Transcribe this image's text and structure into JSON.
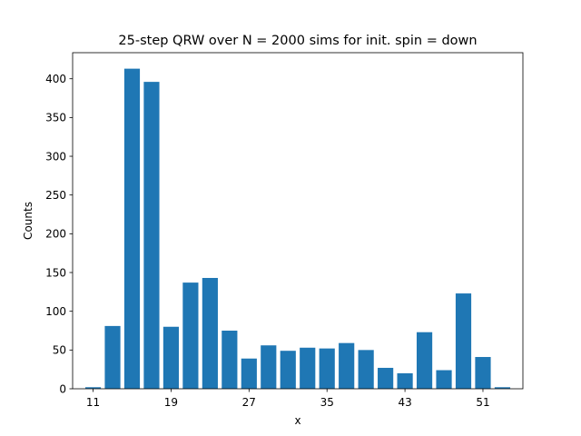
{
  "chart_data": {
    "type": "bar",
    "title": "25-step QRW over N = 2000 sims for init. spin = down",
    "xlabel": "x",
    "ylabel": "Counts",
    "x": [
      11,
      13,
      15,
      17,
      19,
      21,
      23,
      25,
      27,
      29,
      31,
      33,
      35,
      37,
      39,
      41,
      43,
      45,
      47,
      49,
      51,
      53
    ],
    "values": [
      2,
      81,
      413,
      396,
      80,
      137,
      143,
      75,
      39,
      56,
      49,
      53,
      52,
      59,
      50,
      27,
      20,
      73,
      24,
      123,
      41,
      2
    ],
    "xticks": [
      11,
      19,
      27,
      35,
      43,
      51
    ],
    "yticks": [
      0,
      50,
      100,
      150,
      200,
      250,
      300,
      350,
      400
    ],
    "xlim": [
      8.9,
      55.1
    ],
    "ylim": [
      0,
      433.65
    ],
    "bar_color": "#1f77b4",
    "grid": false,
    "legend": "none"
  }
}
